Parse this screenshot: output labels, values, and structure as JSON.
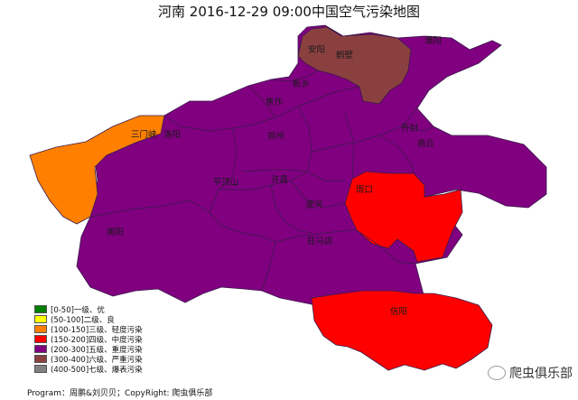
{
  "title": "河南 2016-12-29 09:00中国空气污染地图",
  "colors": {
    "excellent": "#008000",
    "good": "#ffff00",
    "light": "#ff8000",
    "moderate": "#ff0000",
    "heavy": "#800080",
    "severe": "#8b4040",
    "extreme": "#808080"
  },
  "legend": [
    {
      "label": "[0-50]一级、优",
      "color": "#008000"
    },
    {
      "label": "(50-100]二级、良",
      "color": "#ffff00"
    },
    {
      "label": "(100-150]三级、轻度污染",
      "color": "#ff8000"
    },
    {
      "label": "(150-200]四级、中度污染",
      "color": "#ff0000"
    },
    {
      "label": "(200-300]五级、重度污染",
      "color": "#800080"
    },
    {
      "label": "(300-400]六级、严重污染",
      "color": "#8b4040"
    },
    {
      "label": "(400-500]七级、爆表污染",
      "color": "#808080"
    }
  ],
  "cities": {
    "anyang": "安阳",
    "hebi": "鹤壁",
    "puyang": "濮阳",
    "xinxiang": "新乡",
    "jiaozuo": "焦作",
    "sanmenxia": "三门峡",
    "luoyang": "洛阳",
    "zhengzhou": "郑州",
    "kaifeng": "开封",
    "shangqiu": "商丘",
    "pingdingshan": "平顶山",
    "xuchang": "许昌",
    "zhoukou": "周口",
    "luohe": "漯河",
    "nanyang": "南阳",
    "zhumadian": "驻马店",
    "xinyang": "信阳"
  },
  "footer": "Program：周鹏&刘贝贝；CopyRight: 爬虫俱乐部",
  "watermark": "爬虫俱乐部"
}
